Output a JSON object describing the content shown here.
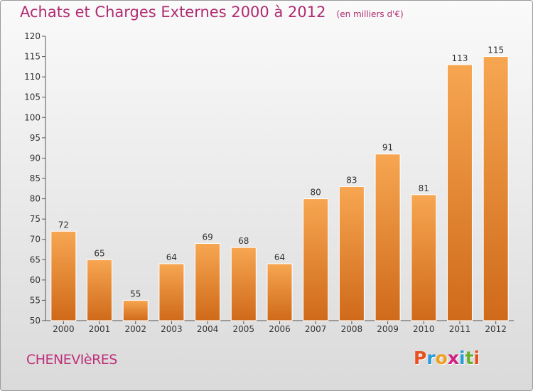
{
  "header": {
    "title": "Achats et Charges Externes 2000 à 2012",
    "unit": "(en milliers d'€)"
  },
  "footer": {
    "commune": "CHENEVIèRES",
    "logo_letters": [
      "P",
      "r",
      "o",
      "x",
      "i",
      "t",
      "i"
    ],
    "logo_colors": [
      "#e8501e",
      "#2a9ad8",
      "#f0a020",
      "#d02080",
      "#2a9ad8",
      "#6ab030",
      "#e8501e"
    ]
  },
  "chart_data": {
    "type": "bar",
    "categories": [
      "2000",
      "2001",
      "2002",
      "2003",
      "2004",
      "2005",
      "2006",
      "2007",
      "2008",
      "2009",
      "2010",
      "2011",
      "2012"
    ],
    "values": [
      72,
      65,
      55,
      64,
      69,
      68,
      64,
      80,
      83,
      91,
      81,
      113,
      115
    ],
    "data_labels": [
      "72",
      "65",
      "55",
      "64",
      "69",
      "68",
      "64",
      "80",
      "83",
      "91",
      "81",
      "113",
      "115"
    ],
    "ylim": [
      50,
      120
    ],
    "yticks": [
      50,
      55,
      60,
      65,
      70,
      75,
      80,
      85,
      90,
      95,
      100,
      105,
      110,
      115,
      120
    ],
    "ytick_labels": [
      "50",
      "55",
      "60",
      "65",
      "70",
      "75",
      "80",
      "85",
      "90",
      "95",
      "100",
      "105",
      "110",
      "115",
      "120"
    ],
    "grid": false,
    "bar_color_light": "#f7a651",
    "bar_color_dark": "#cf6a1a"
  }
}
